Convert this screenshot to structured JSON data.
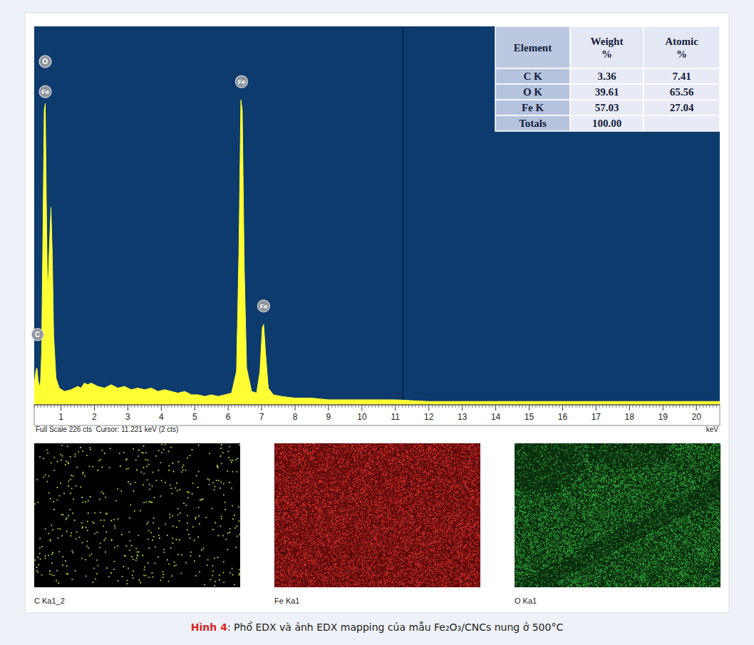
{
  "chart_data": {
    "type": "area",
    "x_label": "keV",
    "color": "#ffff33",
    "xlim": [
      0.2,
      20.7
    ],
    "ylim": [
      0,
      226
    ],
    "xticks": [
      1,
      2,
      3,
      4,
      5,
      6,
      7,
      8,
      9,
      10,
      11,
      12,
      13,
      14,
      15,
      16,
      17,
      18,
      19,
      20
    ],
    "tick_labels": "x",
    "grid": false,
    "x": [
      0.2,
      0.25,
      0.28,
      0.32,
      0.38,
      0.42,
      0.46,
      0.5,
      0.53,
      0.56,
      0.6,
      0.65,
      0.7,
      0.74,
      0.78,
      0.85,
      0.95,
      1.1,
      1.3,
      1.5,
      1.6,
      1.7,
      1.8,
      1.9,
      2.1,
      2.3,
      2.5,
      2.7,
      2.9,
      3.1,
      3.3,
      3.5,
      3.7,
      3.9,
      4.1,
      4.3,
      4.5,
      4.7,
      4.9,
      5.1,
      5.3,
      5.5,
      5.7,
      5.9,
      6.1,
      6.25,
      6.32,
      6.38,
      6.42,
      6.48,
      6.55,
      6.7,
      6.85,
      6.95,
      7.02,
      7.06,
      7.12,
      7.2,
      7.35,
      7.6,
      8,
      8.5,
      9,
      9.5,
      10,
      10.5,
      11,
      12,
      13,
      14,
      15,
      16,
      17,
      18,
      19,
      20,
      20.7
    ],
    "values": [
      12,
      20,
      22,
      14,
      10,
      30,
      100,
      176,
      180,
      125,
      62,
      92,
      118,
      90,
      42,
      16,
      10,
      8,
      9,
      11,
      10,
      13,
      12,
      13,
      11,
      10,
      12,
      10,
      11,
      9,
      10,
      9,
      10,
      8,
      9,
      8,
      7,
      8,
      6,
      6,
      5,
      6,
      5,
      6,
      7,
      20,
      90,
      182,
      176,
      82,
      22,
      8,
      7,
      20,
      46,
      48,
      30,
      10,
      6,
      5,
      4,
      4,
      3,
      3,
      3,
      3,
      3,
      2,
      2,
      2,
      2,
      2,
      2,
      2,
      2,
      2,
      2
    ],
    "peak_labels": [
      {
        "text": "O",
        "x": 0.53,
        "y": 205
      },
      {
        "text": "Fe",
        "x": 0.53,
        "y": 187
      },
      {
        "text": "Fe",
        "x": 6.4,
        "y": 193
      },
      {
        "text": "Fe",
        "x": 7.06,
        "y": 59
      },
      {
        "text": "C",
        "x": 0.3,
        "y": 42
      }
    ],
    "cursor": 11.221,
    "footer": "Full Scale 226 cts  Cursor: 11.221 keV (2 cts)"
  },
  "table": {
    "header": [
      "Element",
      "Weight %",
      "Atomic %"
    ],
    "rows": [
      [
        "C K",
        "3.36",
        "7.41"
      ],
      [
        "O K",
        "39.61",
        "65.56"
      ],
      [
        "Fe K",
        "57.03",
        "27.04"
      ],
      [
        "Totals",
        "100.00"
      ]
    ]
  },
  "maps": [
    {
      "label": "C Ka1_2"
    },
    {
      "label": "Fe Ka1"
    },
    {
      "label": "O Ka1"
    }
  ],
  "caption": {
    "label": "Hình 4",
    "text": ": Phổ EDX và ảnh EDX mapping của mẫu Fe₂O₃/CNCs nung ở 500°C"
  }
}
